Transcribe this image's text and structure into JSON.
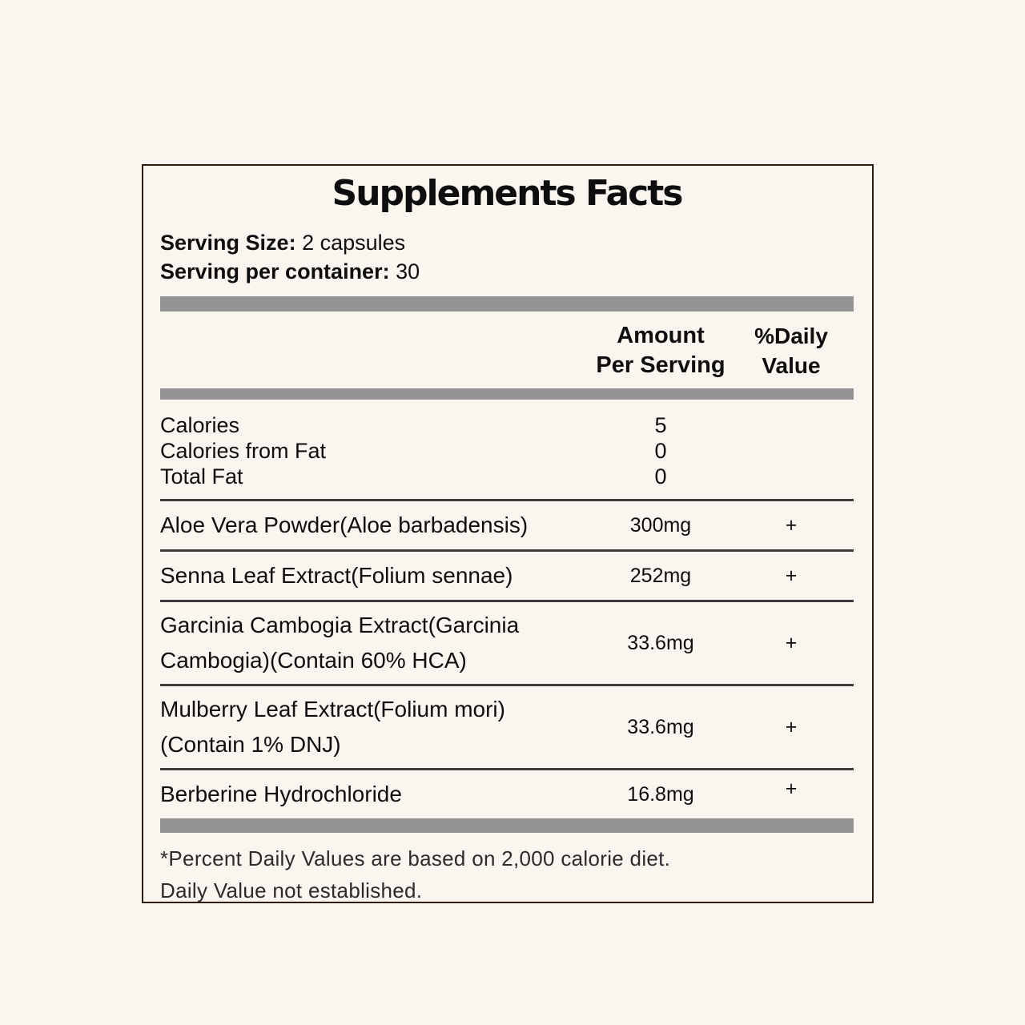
{
  "panel": {
    "title": "Supplements Facts",
    "serving": {
      "size_label": "Serving Size:",
      "size_value": "2 capsules",
      "container_label": "Serving per container:",
      "container_value": "30"
    },
    "columns": {
      "amount_header": "Amount\nPer Serving",
      "dv_header": "%Daily\nValue"
    },
    "calorie_rows": [
      {
        "name": "Calories",
        "amount": "5",
        "dv": ""
      },
      {
        "name": "Calories from Fat",
        "amount": "0",
        "dv": ""
      },
      {
        "name": "Total Fat",
        "amount": "0",
        "dv": ""
      }
    ],
    "ingredient_rows": [
      {
        "name": "Aloe Vera Powder(Aloe barbadensis)",
        "amount": "300mg",
        "dv": "+"
      },
      {
        "name": "Senna Leaf Extract(Folium sennae)",
        "amount": "252mg",
        "dv": "+"
      },
      {
        "name": "Garcinia Cambogia Extract(Garcinia\nCambogia)(Contain 60% HCA)",
        "amount": "33.6mg",
        "dv": "+"
      },
      {
        "name": "Mulberry Leaf Extract(Folium mori)\n(Contain 1% DNJ)",
        "amount": "33.6mg",
        "dv": "+"
      },
      {
        "name": "Berberine Hydrochloride",
        "amount": "16.8mg",
        "dv": "+"
      }
    ],
    "footnotes": [
      "*Percent Daily Values are based on 2,000 calorie diet.",
      "Daily Value not established."
    ],
    "colors": {
      "background": "#FAF5EF",
      "panel_border": "#2E1C0D",
      "bar": "#949494",
      "rule": "#3C3C3C",
      "text": "#0E0E0E"
    }
  }
}
